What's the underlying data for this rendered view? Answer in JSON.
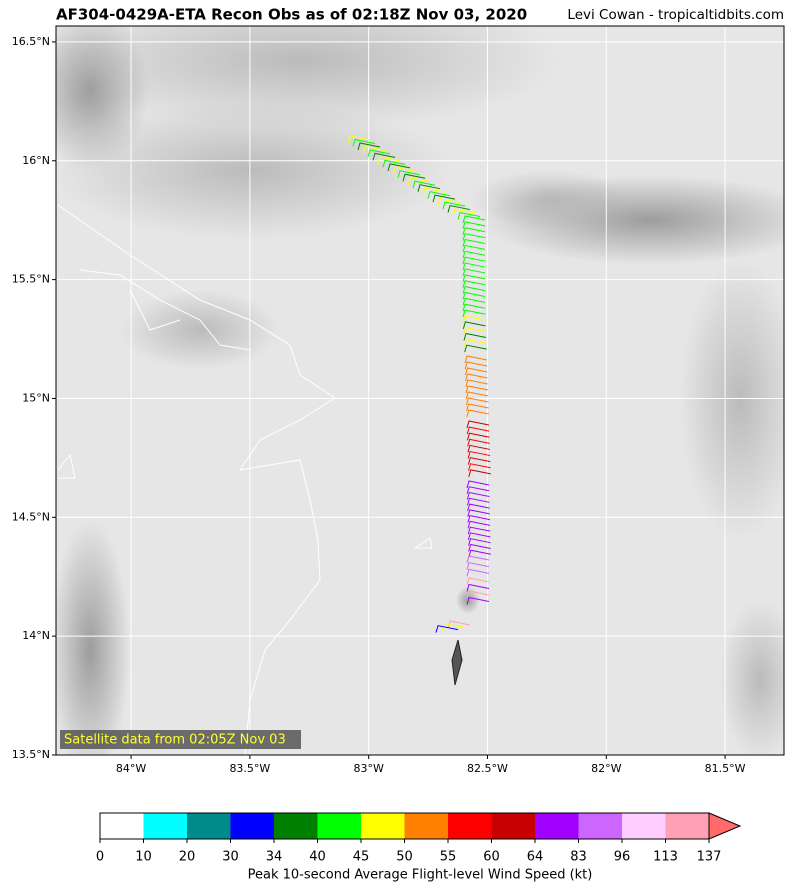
{
  "map": {
    "title": "AF304-0429A-ETA Recon Obs as of 02:18Z Nov 03, 2020",
    "credit": "Levi Cowan - tropicaltidbits.com",
    "note": "Satellite data from 02:05Z Nov 03",
    "xlim": [
      -84.316,
      -81.252
    ],
    "ylim": [
      13.5,
      16.567
    ],
    "xticks": [
      {
        "value": -84,
        "label": "84°W"
      },
      {
        "value": -83.5,
        "label": "83.5°W"
      },
      {
        "value": -83,
        "label": "83°W"
      },
      {
        "value": -82.5,
        "label": "82.5°W"
      },
      {
        "value": -82,
        "label": "82°W"
      },
      {
        "value": -81.5,
        "label": "81.5°W"
      }
    ],
    "yticks": [
      {
        "value": 13.5,
        "label": "13.5°N"
      },
      {
        "value": 14,
        "label": "14°N"
      },
      {
        "value": 14.5,
        "label": "14.5°N"
      },
      {
        "value": 15,
        "label": "15°N"
      },
      {
        "value": 15.5,
        "label": "15.5°N"
      },
      {
        "value": 16,
        "label": "16°N"
      },
      {
        "value": 16.5,
        "label": "16.5°N"
      }
    ],
    "grid": true
  },
  "colorbar": {
    "label": "Peak 10-second Average Flight-level Wind Speed (kt)",
    "ticks": [
      0,
      10,
      20,
      30,
      34,
      40,
      45,
      50,
      55,
      60,
      64,
      83,
      96,
      113,
      137
    ],
    "colors": [
      "#ffffff",
      "#00ffff",
      "#008b8b",
      "#0000ff",
      "#008000",
      "#00ff00",
      "#ffff00",
      "#ff7f00",
      "#ff0000",
      "#c80000",
      "#a000ff",
      "#cc66ff",
      "#ffccff",
      "#ffa0b4"
    ],
    "extend_color": "#ff6a6a"
  }
}
